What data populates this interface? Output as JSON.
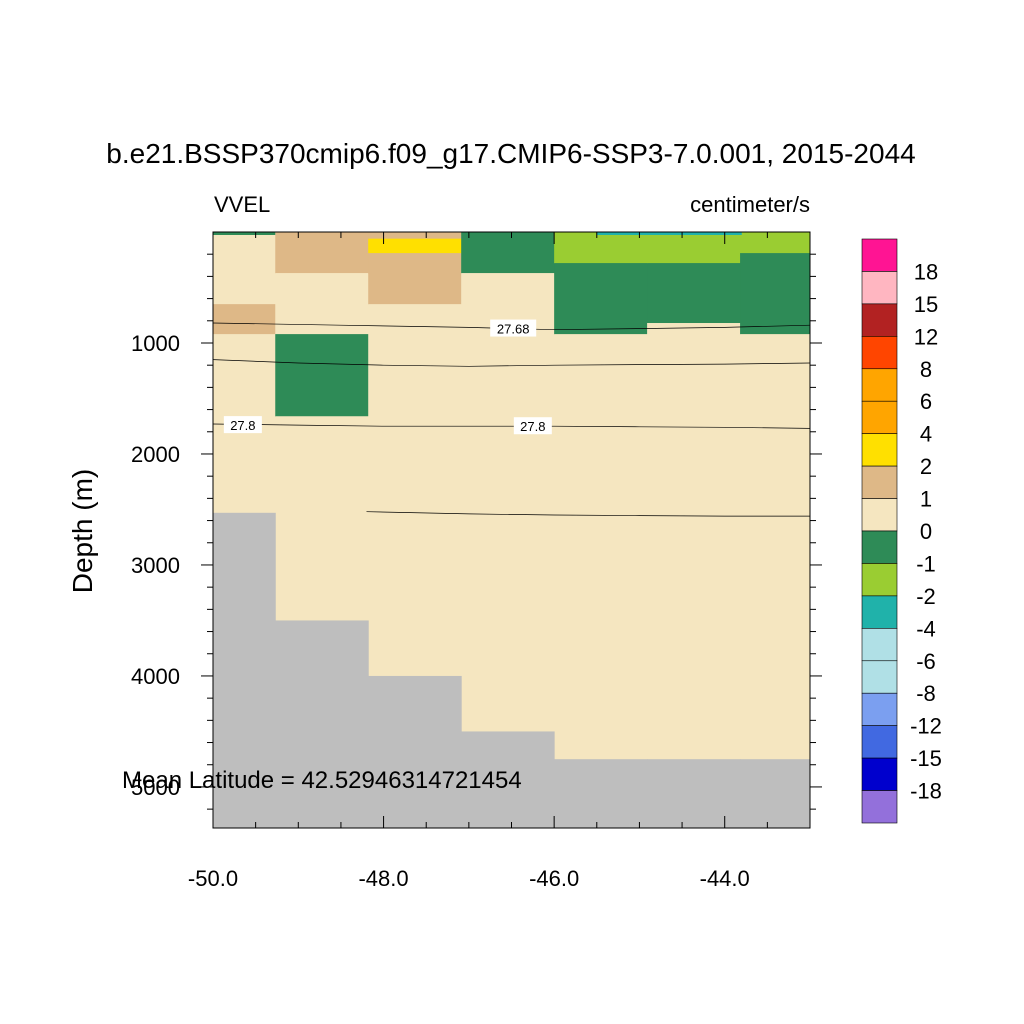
{
  "chart_data": {
    "type": "heatmap",
    "title": "b.e21.BSSP370cmip6.f09_g17.CMIP6-SSP3-7.0.001, 2015-2044",
    "left_subtitle": "VVEL",
    "right_subtitle": "centimeter/s",
    "ylabel": "Depth (m)",
    "xlabel": "",
    "xlim": [
      -50.0,
      -43.0
    ],
    "ylim": [
      5370,
      0
    ],
    "x_ticks": [
      -50.0,
      -48.0,
      -46.0,
      -44.0
    ],
    "x_tick_labels": [
      "-50.0",
      "-48.0",
      "-46.0",
      "-44.0"
    ],
    "y_ticks": [
      1000,
      2000,
      3000,
      4000,
      5000
    ],
    "y_tick_labels": [
      "1000",
      "2000",
      "3000",
      "4000",
      "5000"
    ],
    "annotation": "Mean Latitude = 42.52946314721454",
    "colorbar": {
      "labels": [
        "18",
        "15",
        "12",
        "8",
        "6",
        "4",
        "2",
        "1",
        "0",
        "-1",
        "-2",
        "-4",
        "-6",
        "-8",
        "-12",
        "-15",
        "-18"
      ],
      "colors": [
        "#ff1493",
        "#ffb6c1",
        "#b22222",
        "#ff4500",
        "#ffa500",
        "#ffa500",
        "#ffe000",
        "#deb887",
        "#f5e6c0",
        "#2e8b57",
        "#9acd32",
        "#20b2aa",
        "#b0e0e6",
        "#b0e0e6",
        "#7b9ff0",
        "#4169e1",
        "#0000cd",
        "#9370db"
      ]
    },
    "columns": [
      {
        "x0": -50.0,
        "x1": -49.27,
        "bottom": 2530,
        "cells": [
          {
            "top": 0,
            "bottom": 20,
            "value_class": "0 to 1"
          },
          {
            "top": 20,
            "bottom": 650,
            "value_class": "0 to 1"
          },
          {
            "top": 650,
            "bottom": 920,
            "value_class": "1 to 2"
          },
          {
            "top": 920,
            "bottom": 2530,
            "value_class": "0 to 1"
          }
        ]
      },
      {
        "x0": -49.27,
        "x1": -48.18,
        "bottom": 3500,
        "cells": [
          {
            "top": 0,
            "bottom": 370,
            "value_class": "1 to 2"
          },
          {
            "top": 370,
            "bottom": 920,
            "value_class": "0 to 1"
          },
          {
            "top": 920,
            "bottom": 1660,
            "value_class": "-1 to 0"
          },
          {
            "top": 1660,
            "bottom": 3500,
            "value_class": "0 to 1"
          }
        ]
      },
      {
        "x0": -48.18,
        "x1": -47.09,
        "bottom": 4000,
        "cells": [
          {
            "top": 0,
            "bottom": 60,
            "value_class": "1 to 2"
          },
          {
            "top": 60,
            "bottom": 190,
            "value_class": "2 to 4"
          },
          {
            "top": 190,
            "bottom": 370,
            "value_class": "1 to 2"
          },
          {
            "top": 370,
            "bottom": 650,
            "value_class": "1 to 2"
          },
          {
            "top": 650,
            "bottom": 4000,
            "value_class": "0 to 1"
          }
        ]
      },
      {
        "x0": -47.09,
        "x1": -46.0,
        "bottom": 4500,
        "cells": [
          {
            "top": 0,
            "bottom": 370,
            "value_class": "-1 to 0"
          },
          {
            "top": 370,
            "bottom": 4500,
            "value_class": "0 to 1"
          }
        ]
      },
      {
        "x0": -46.0,
        "x1": -44.91,
        "bottom": 4750,
        "cells": [
          {
            "top": 0,
            "bottom": 280,
            "value_class": "-2 to -1"
          },
          {
            "top": 280,
            "bottom": 920,
            "value_class": "-1 to 0"
          },
          {
            "top": 920,
            "bottom": 4750,
            "value_class": "0 to 1"
          }
        ]
      },
      {
        "x0": -44.91,
        "x1": -43.82,
        "bottom": 4750,
        "cells": [
          {
            "top": 0,
            "bottom": 280,
            "value_class": "-2 to -1"
          },
          {
            "top": 280,
            "bottom": 820,
            "value_class": "-1 to 0"
          },
          {
            "top": 820,
            "bottom": 4750,
            "value_class": "0 to 1"
          }
        ]
      },
      {
        "x0": -43.82,
        "x1": -43.0,
        "bottom": 4750,
        "cells": [
          {
            "top": 0,
            "bottom": 190,
            "value_class": "-2 to -1"
          },
          {
            "top": 190,
            "bottom": 920,
            "value_class": "-1 to 0"
          },
          {
            "top": 920,
            "bottom": 4750,
            "value_class": "0 to 1"
          }
        ]
      }
    ],
    "surface_strip": [
      {
        "x0": -50.0,
        "x1": -49.27,
        "value_class": "-1 to 0"
      },
      {
        "x0": -45.5,
        "x1": -43.8,
        "value_class": "-4 to -2"
      }
    ],
    "contours": [
      {
        "label": "27.68",
        "label_at": [
          -46.48,
          870
        ],
        "points": [
          [
            -50.0,
            820
          ],
          [
            -48.5,
            840
          ],
          [
            -47.0,
            860
          ],
          [
            -46.0,
            880
          ],
          [
            -45.0,
            870
          ],
          [
            -44.0,
            860
          ],
          [
            -43.0,
            840
          ]
        ]
      },
      {
        "label": "",
        "points": [
          [
            -50.0,
            1150
          ],
          [
            -49.0,
            1180
          ],
          [
            -48.0,
            1200
          ],
          [
            -47.0,
            1210
          ],
          [
            -46.0,
            1200
          ],
          [
            -45.0,
            1195
          ],
          [
            -44.0,
            1190
          ],
          [
            -43.0,
            1180
          ]
        ]
      },
      {
        "label": "27.8",
        "label_at": [
          -49.65,
          1740
        ],
        "points": [
          [
            -50.0,
            1730
          ],
          [
            -49.0,
            1740
          ],
          [
            -48.0,
            1750
          ],
          [
            -47.0,
            1750
          ],
          [
            -46.0,
            1750
          ],
          [
            -45.0,
            1755
          ],
          [
            -44.0,
            1760
          ],
          [
            -43.0,
            1770
          ]
        ]
      },
      {
        "label": "27.8",
        "label_at": [
          -46.25,
          1750
        ],
        "points": []
      },
      {
        "label": "",
        "points": [
          [
            -48.2,
            2520
          ],
          [
            -47.0,
            2540
          ],
          [
            -46.0,
            2550
          ],
          [
            -45.0,
            2555
          ],
          [
            -44.0,
            2560
          ],
          [
            -43.0,
            2560
          ]
        ]
      }
    ]
  },
  "colors": {
    "land": "#bebebe",
    "class_colors": {
      "2 to 4": "#ffe000",
      "1 to 2": "#deb887",
      "0 to 1": "#f5e6c0",
      "-1 to 0": "#2e8b57",
      "-2 to -1": "#9acd32",
      "-4 to -2": "#20b2aa"
    }
  }
}
